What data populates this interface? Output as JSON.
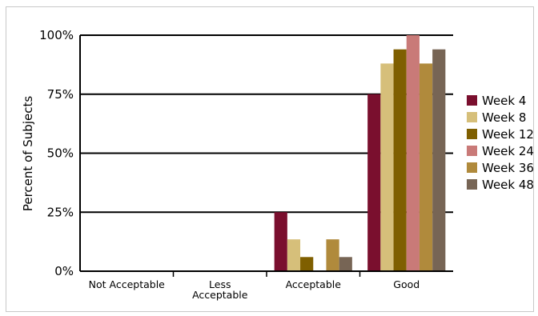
{
  "chart_data": {
    "type": "bar",
    "title": "",
    "xlabel": "",
    "ylabel": "Percent of Subjects",
    "ylim": [
      0,
      100
    ],
    "yticks": [
      "0%",
      "25%",
      "50%",
      "75%",
      "100%"
    ],
    "ytick_values": [
      0,
      25,
      50,
      75,
      100
    ],
    "grid": true,
    "legend_position": "right",
    "categories": [
      "Not Acceptable",
      "Less Acceptable",
      "Acceptable",
      "Good"
    ],
    "category_lines": [
      [
        "Not Acceptable"
      ],
      [
        "Less",
        "Acceptable"
      ],
      [
        "Acceptable"
      ],
      [
        "Good"
      ]
    ],
    "series": [
      {
        "name": "Week 4",
        "color": "#7a0f2e",
        "values": [
          0,
          0,
          25,
          75
        ]
      },
      {
        "name": "Week 8",
        "color": "#d6bf7a",
        "values": [
          0,
          0,
          13.5,
          88
        ]
      },
      {
        "name": "Week 12",
        "color": "#7f5f00",
        "values": [
          0,
          0,
          6,
          94
        ]
      },
      {
        "name": "Week 24",
        "color": "#c97a78",
        "values": [
          0,
          0,
          0,
          100
        ]
      },
      {
        "name": "Week 36",
        "color": "#b08a3c",
        "values": [
          0,
          0,
          13.5,
          88
        ]
      },
      {
        "name": "Week 48",
        "color": "#776555",
        "values": [
          0,
          0,
          6,
          94
        ]
      }
    ]
  }
}
